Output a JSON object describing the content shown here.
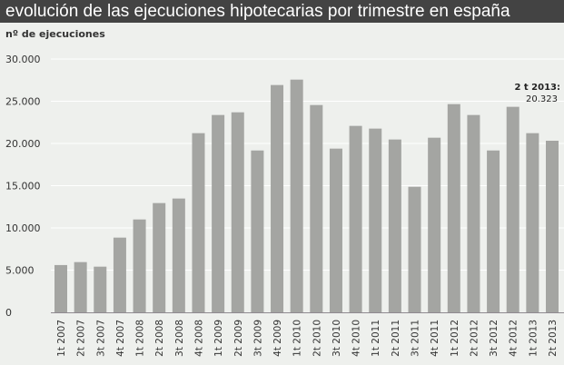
{
  "chart_data": {
    "type": "bar",
    "title": "evolución de las ejecuciones hipotecarias por trimestre en españa",
    "ylabel": "nº de ejecuciones",
    "xlabel": "",
    "ylim": [
      0,
      30000
    ],
    "yticks": [
      "0",
      "5.000",
      "10.000",
      "15.000",
      "20.000",
      "25.000",
      "30.000"
    ],
    "ytick_values": [
      0,
      5000,
      10000,
      15000,
      20000,
      25000,
      30000
    ],
    "grid": true,
    "categories": [
      "1t 2007",
      "2t 2007",
      "3t 2007",
      "4t 2007",
      "1t 2008",
      "2t 2008",
      "3t 2008",
      "4t 2008",
      "1t 2009",
      "2t 2009",
      "3t 2009",
      "4t 2009",
      "1t 2010",
      "2t 2010",
      "3t 2010",
      "4t 2010",
      "1t 2011",
      "2t 2011",
      "3t 2011",
      "4t 2011",
      "1t 2012",
      "2t 2012",
      "3t 2012",
      "4t 2012",
      "1t 2013",
      "2t 2013"
    ],
    "values": [
      5600,
      5950,
      5410,
      8850,
      11000,
      12940,
      13480,
      21220,
      23370,
      23690,
      19170,
      26920,
      27560,
      24550,
      19390,
      22080,
      21760,
      20470,
      14870,
      20680,
      24660,
      23370,
      19170,
      24340,
      21220,
      20323
    ],
    "bar_color": "#a4a5a2",
    "annotation": {
      "label": "2 t 2013:",
      "value": "20.323"
    }
  }
}
